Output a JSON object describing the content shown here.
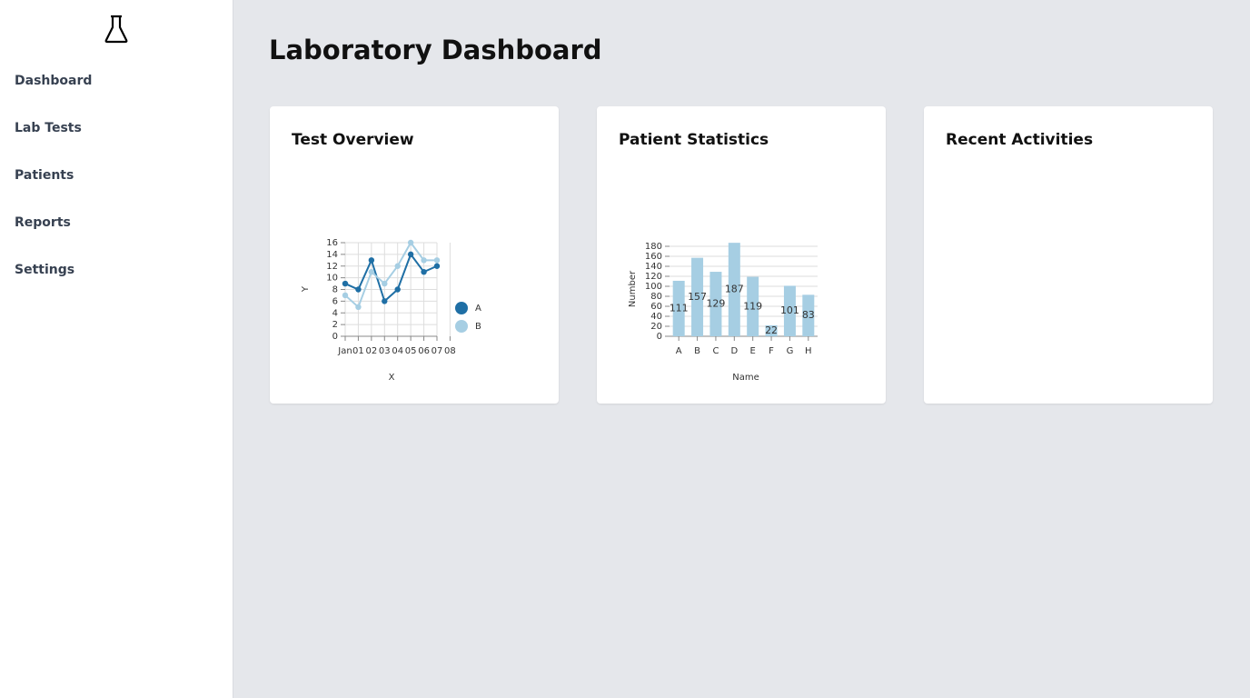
{
  "sidebar": {
    "nav": [
      "Dashboard",
      "Lab Tests",
      "Patients",
      "Reports",
      "Settings"
    ]
  },
  "header": {
    "title": "Laboratory Dashboard"
  },
  "cards": [
    {
      "title": "Test Overview"
    },
    {
      "title": "Patient Statistics"
    },
    {
      "title": "Recent Activities"
    }
  ],
  "chart_data": [
    {
      "type": "line",
      "x_label": "X",
      "y_label": "Y",
      "categories": [
        "Jan",
        "01",
        "02",
        "03",
        "04",
        "05",
        "06",
        "07",
        "08"
      ],
      "series": [
        {
          "name": "A",
          "color": "#1f6fa5",
          "values": [
            9,
            8,
            13,
            6,
            8,
            14,
            11,
            12,
            null
          ]
        },
        {
          "name": "B",
          "color": "#a6cee3",
          "values": [
            7,
            5,
            11,
            9,
            12,
            16,
            13,
            13,
            null
          ]
        }
      ],
      "ylim": [
        0,
        16
      ],
      "yticks": [
        0,
        2,
        4,
        6,
        8,
        10,
        12,
        14,
        16
      ],
      "grid": true,
      "legend": "right"
    },
    {
      "type": "bar",
      "x_label": "Name",
      "y_label": "Number",
      "categories": [
        "A",
        "B",
        "C",
        "D",
        "E",
        "F",
        "G",
        "H"
      ],
      "values": [
        111,
        157,
        129,
        187,
        119,
        22,
        101,
        83
      ],
      "color": "#a6cee3",
      "ylim": [
        0,
        190
      ],
      "yticks": [
        0,
        20,
        40,
        60,
        80,
        100,
        120,
        140,
        160,
        180
      ],
      "grid": true
    }
  ]
}
